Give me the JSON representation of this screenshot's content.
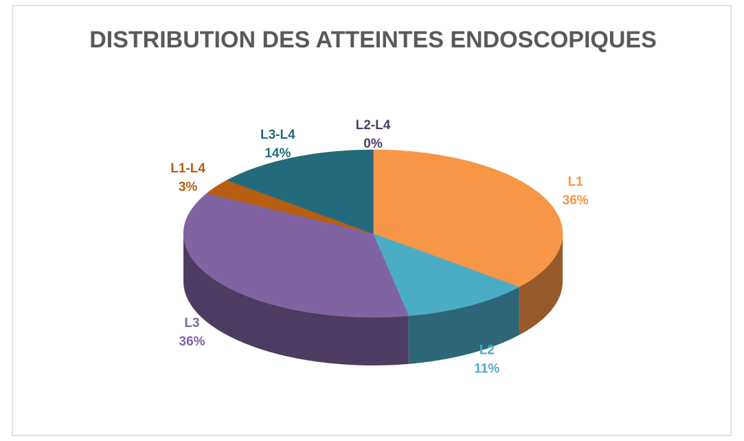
{
  "chart_data": {
    "type": "pie",
    "title": "DISTRIBUTION DES ATTEINTES ENDOSCOPIQUES",
    "categories": [
      "L1",
      "L2",
      "L3",
      "L1-L4",
      "L3-L4",
      "L2-L4"
    ],
    "values": [
      36,
      11,
      36,
      3,
      14,
      0
    ],
    "value_labels": [
      "36%",
      "11%",
      "36%",
      "3%",
      "14%",
      "0%"
    ],
    "colors": [
      "#f79646",
      "#4bacc6",
      "#8064a2",
      "#b95d10",
      "#236b7c",
      "#4f3a6b"
    ]
  }
}
